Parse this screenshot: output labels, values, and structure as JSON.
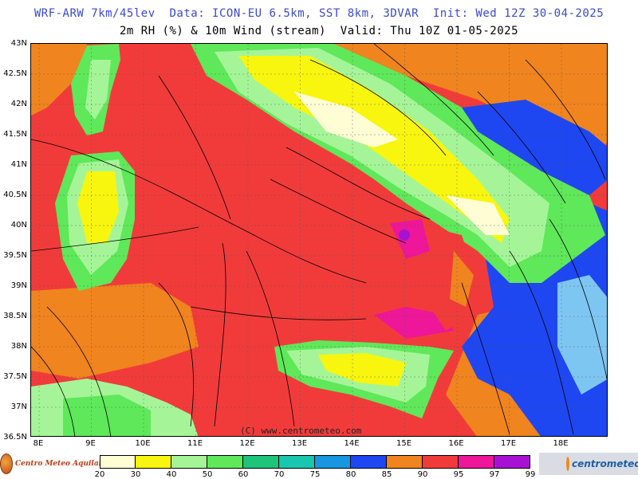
{
  "header": {
    "line1": "WRF-ARW 7km/45lev  Data: ICON-EU 6.5km, SST 8km, 3DVAR  Init: Wed 12Z 30-04-2025",
    "line2": "2m RH (%) & 10m Wind (stream)  Valid: Thu 10Z 01-05-2025"
  },
  "map": {
    "lat_labels": [
      "43N",
      "42.5N",
      "42N",
      "41.5N",
      "41N",
      "40.5N",
      "40N",
      "39.5N",
      "39N",
      "38.5N",
      "38N",
      "37.5N",
      "37N",
      "36.5N"
    ],
    "lon_labels": [
      "8E",
      "9E",
      "10E",
      "11E",
      "12E",
      "13E",
      "14E",
      "15E",
      "16E",
      "17E",
      "18E"
    ],
    "watermark": "(C) www.centrometeo.com",
    "land_colors": {
      "dry": "#fefdd4",
      "yellow": "#f8f50f",
      "lightgreen": "#a5f598",
      "green": "#5fe85a"
    },
    "sea_colors": {
      "red": "#f13b3b",
      "orange": "#f0841e",
      "magenta": "#ee1699",
      "blue": "#1e47f2"
    }
  },
  "legend": {
    "ticks": [
      "20",
      "30",
      "40",
      "50",
      "60",
      "70",
      "75",
      "80",
      "85",
      "90",
      "95",
      "97",
      "99"
    ],
    "colors": [
      "#fefdd4",
      "#f8f50f",
      "#a5f598",
      "#5fe85a",
      "#1ec47a",
      "#19c7b0",
      "#1896e0",
      "#1e47f2",
      "#f0841e",
      "#f13b3b",
      "#ee1699",
      "#a811d4"
    ]
  },
  "logos": {
    "left": "Centro Meteo Aquilano",
    "right": "centrometeo"
  }
}
